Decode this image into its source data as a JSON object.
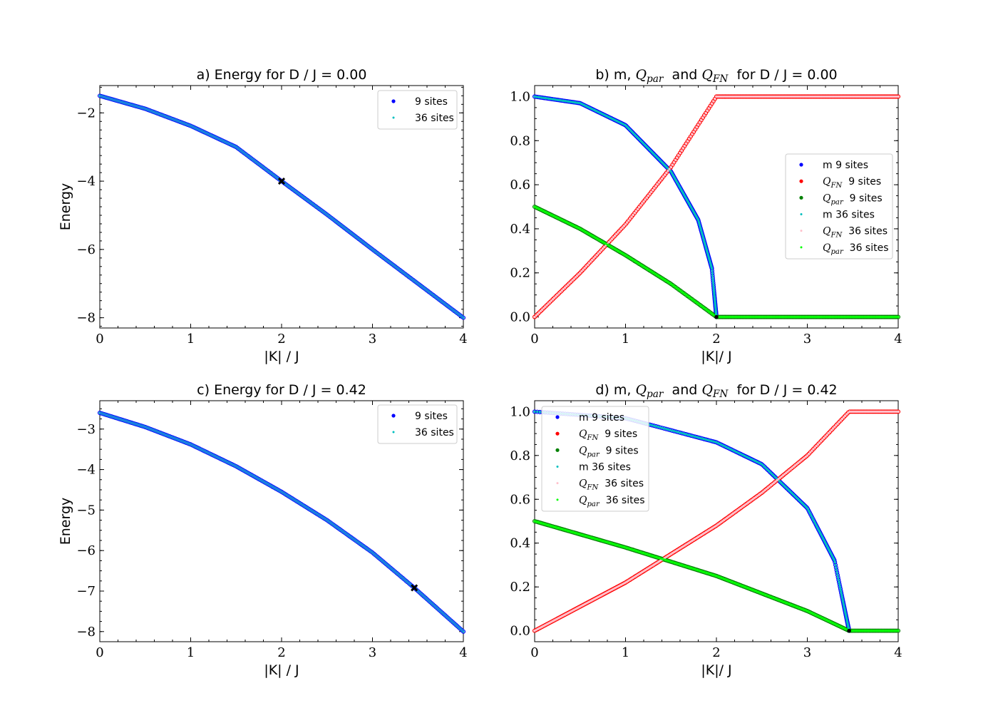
{
  "chart_data": [
    {
      "id": "a",
      "type": "scatter",
      "title": "a) Energy for D / J = 0.00",
      "xlabel": "|K| / J",
      "ylabel": "Energy",
      "xlim": [
        0,
        4
      ],
      "ylim": [
        -8.3,
        -1.2
      ],
      "xticks": [
        "0",
        "1",
        "2",
        "3",
        "4"
      ],
      "yticks": [
        "−2",
        "−4",
        "−6",
        "−8"
      ],
      "legend_position": "upper right",
      "legend": [
        "9 sites",
        "36 sites"
      ],
      "series": [
        {
          "name": "9 sites",
          "color": "#0000ff",
          "x": [
            0,
            0.5,
            1,
            1.5,
            2,
            2.5,
            3,
            3.5,
            4
          ],
          "y": [
            -1.5,
            -1.88,
            -2.38,
            -3.0,
            -4.0,
            -4.98,
            -6.0,
            -7.0,
            -8.0
          ]
        },
        {
          "name": "36 sites",
          "color": "#00bfbf",
          "x": [
            0,
            0.5,
            1,
            1.5,
            2,
            2.5,
            3,
            3.5,
            4
          ],
          "y": [
            -1.5,
            -1.88,
            -2.38,
            -3.0,
            -4.0,
            -4.98,
            -6.0,
            -7.0,
            -8.0
          ]
        }
      ],
      "marker": {
        "x": 2.0,
        "y": -4.0,
        "color": "#000000"
      }
    },
    {
      "id": "b",
      "type": "scatter",
      "title": "b) m, Q_par and Q_FN for D / J = 0.00",
      "xlabel": "|K|/ J",
      "ylabel": "",
      "xlim": [
        0,
        4
      ],
      "ylim": [
        -0.05,
        1.05
      ],
      "xticks": [
        "0",
        "1",
        "2",
        "3",
        "4"
      ],
      "yticks": [
        "0.0",
        "0.2",
        "0.4",
        "0.6",
        "0.8",
        "1.0"
      ],
      "legend_position": "center right",
      "legend": [
        "m 9 sites",
        "Q_FN 9 sites",
        "Q_par 9 sites",
        "m 36 sites",
        "Q_FN 36 sites",
        "Q_par 36 sites"
      ],
      "kc": 2.0,
      "series": [
        {
          "name": "m 9 sites",
          "color": "#0000ff",
          "x": [
            0,
            0.5,
            1,
            1.5,
            1.8,
            1.95,
            2.0
          ],
          "y": [
            1.0,
            0.97,
            0.87,
            0.66,
            0.44,
            0.22,
            0.0
          ]
        },
        {
          "name": "Q_FN 9 sites",
          "color": "#ff0000",
          "x": [
            0,
            0.5,
            1,
            1.5,
            2.0,
            4.0
          ],
          "y": [
            0.0,
            0.2,
            0.42,
            0.68,
            1.0,
            1.0
          ]
        },
        {
          "name": "Q_par 9 sites",
          "color": "#008000",
          "x": [
            0,
            0.5,
            1,
            1.5,
            2.0,
            4.0
          ],
          "y": [
            0.5,
            0.4,
            0.28,
            0.15,
            0.0,
            0.0
          ]
        },
        {
          "name": "m 36 sites",
          "color": "#00bfbf",
          "x": [
            0,
            0.5,
            1,
            1.5,
            1.8,
            1.95,
            2.0
          ],
          "y": [
            1.0,
            0.97,
            0.87,
            0.66,
            0.44,
            0.22,
            0.0
          ]
        },
        {
          "name": "Q_FN 36 sites",
          "color": "#ffc0cb",
          "x": [
            0,
            0.5,
            1,
            1.5,
            2.0,
            4.0
          ],
          "y": [
            0.0,
            0.2,
            0.42,
            0.68,
            1.0,
            1.0
          ]
        },
        {
          "name": "Q_par 36 sites",
          "color": "#00ff00",
          "x": [
            0,
            0.5,
            1,
            1.5,
            2.0,
            4.0
          ],
          "y": [
            0.5,
            0.4,
            0.28,
            0.15,
            0.0,
            0.0
          ]
        }
      ],
      "marker": {
        "x": 2.0,
        "y": 0.0,
        "color": "#000000"
      }
    },
    {
      "id": "c",
      "type": "scatter",
      "title": "c) Energy for D / J = 0.42",
      "xlabel": "|K| / J",
      "ylabel": "Energy",
      "xlim": [
        0,
        4
      ],
      "ylim": [
        -8.25,
        -2.3
      ],
      "xticks": [
        "0",
        "1",
        "2",
        "3",
        "4"
      ],
      "yticks": [
        "−3",
        "−4",
        "−5",
        "−6",
        "−7",
        "−8"
      ],
      "legend_position": "upper right",
      "legend": [
        "9 sites",
        "36 sites"
      ],
      "series": [
        {
          "name": "9 sites",
          "color": "#0000ff",
          "x": [
            0,
            0.5,
            1,
            1.5,
            2,
            2.5,
            3,
            3.46,
            4
          ],
          "y": [
            -2.6,
            -2.95,
            -3.38,
            -3.92,
            -4.55,
            -5.25,
            -6.05,
            -6.92,
            -8.0
          ]
        },
        {
          "name": "36 sites",
          "color": "#00bfbf",
          "x": [
            0,
            0.5,
            1,
            1.5,
            2,
            2.5,
            3,
            3.46,
            4
          ],
          "y": [
            -2.6,
            -2.95,
            -3.38,
            -3.92,
            -4.55,
            -5.25,
            -6.05,
            -6.92,
            -8.0
          ]
        }
      ],
      "marker": {
        "x": 3.46,
        "y": -6.92,
        "color": "#000000"
      }
    },
    {
      "id": "d",
      "type": "scatter",
      "title": "d) m, Q_par and Q_FN for D / J = 0.42",
      "xlabel": "|K|/ J",
      "ylabel": "",
      "xlim": [
        0,
        4
      ],
      "ylim": [
        -0.05,
        1.05
      ],
      "xticks": [
        "0",
        "1",
        "2",
        "3",
        "4"
      ],
      "yticks": [
        "0.0",
        "0.2",
        "0.4",
        "0.6",
        "0.8",
        "1.0"
      ],
      "legend_position": "upper left",
      "legend": [
        "m 9 sites",
        "Q_FN 9 sites",
        "Q_par 9 sites",
        "m 36 sites",
        "Q_FN 36 sites",
        "Q_par 36 sites"
      ],
      "kc": 3.46,
      "series": [
        {
          "name": "m 9 sites",
          "color": "#0000ff",
          "x": [
            0,
            1,
            2,
            2.5,
            3,
            3.3,
            3.46
          ],
          "y": [
            1.0,
            0.97,
            0.86,
            0.76,
            0.56,
            0.32,
            0.0
          ]
        },
        {
          "name": "Q_FN 9 sites",
          "color": "#ff0000",
          "x": [
            0,
            1,
            2,
            2.5,
            3,
            3.46,
            4.0
          ],
          "y": [
            0.0,
            0.22,
            0.48,
            0.63,
            0.8,
            1.0,
            1.0
          ]
        },
        {
          "name": "Q_par 9 sites",
          "color": "#008000",
          "x": [
            0,
            1,
            2,
            2.5,
            3,
            3.46,
            4.0
          ],
          "y": [
            0.5,
            0.38,
            0.25,
            0.17,
            0.09,
            0.0,
            0.0
          ]
        },
        {
          "name": "m 36 sites",
          "color": "#00bfbf",
          "x": [
            0,
            1,
            2,
            2.5,
            3,
            3.3,
            3.46
          ],
          "y": [
            1.0,
            0.97,
            0.86,
            0.76,
            0.56,
            0.32,
            0.0
          ]
        },
        {
          "name": "Q_FN 36 sites",
          "color": "#ffc0cb",
          "x": [
            0,
            1,
            2,
            2.5,
            3,
            3.46,
            4.0
          ],
          "y": [
            0.0,
            0.22,
            0.48,
            0.63,
            0.8,
            1.0,
            1.0
          ]
        },
        {
          "name": "Q_par 36 sites",
          "color": "#00ff00",
          "x": [
            0,
            1,
            2,
            2.5,
            3,
            3.46,
            4.0
          ],
          "y": [
            0.5,
            0.38,
            0.25,
            0.17,
            0.09,
            0.0,
            0.0
          ]
        }
      ],
      "marker": {
        "x": 3.46,
        "y": 0.0,
        "color": "#000000"
      }
    }
  ]
}
